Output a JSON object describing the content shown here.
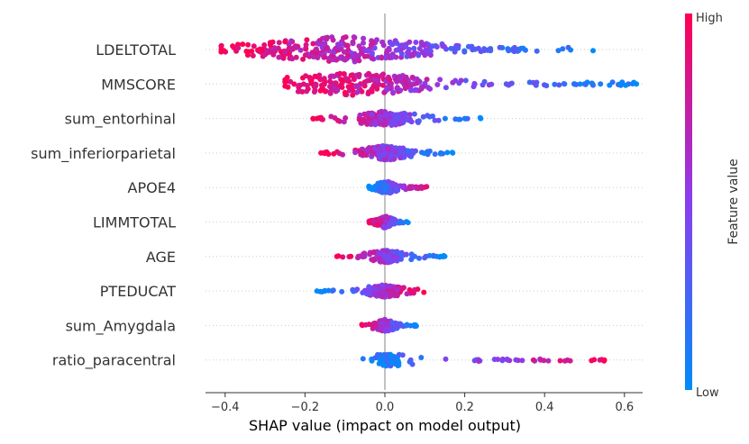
{
  "chart_data": {
    "type": "scatter",
    "subtype": "shap-beeswarm",
    "xlabel": "SHAP value (impact on model output)",
    "xlim": [
      -0.45,
      0.66
    ],
    "xticks": [
      -0.4,
      -0.2,
      0.0,
      0.2,
      0.4,
      0.6
    ],
    "xtick_labels": [
      "−0.4",
      "−0.2",
      "0.0",
      "0.2",
      "0.4",
      "0.6"
    ],
    "colorbar": {
      "title": "Feature value",
      "high_label": "High",
      "low_label": "Low",
      "high_color": "#ff0052",
      "mid_color": "#8a3df0",
      "low_color": "#008bfb"
    },
    "features": [
      {
        "name": "LDELTOTAL",
        "min": -0.41,
        "max": 0.53,
        "core": [
          -0.31,
          0.1
        ],
        "density": 10,
        "direction": -1
      },
      {
        "name": "MMSCORE",
        "min": -0.25,
        "max": 0.63,
        "core": [
          -0.22,
          0.08
        ],
        "density": 8,
        "direction": -1,
        "outliers": [
          0.45,
          0.5,
          0.52,
          0.54,
          0.59,
          0.63
        ]
      },
      {
        "name": "sum_entorhinal",
        "min": -0.18,
        "max": 0.24,
        "core": [
          -0.05,
          0.05
        ],
        "density": 4,
        "direction": -1,
        "outliers": [
          -0.18,
          -0.17,
          0.2,
          0.24
        ]
      },
      {
        "name": "sum_inferiorparietal",
        "min": -0.16,
        "max": 0.17,
        "core": [
          -0.05,
          0.05
        ],
        "density": 4,
        "direction": -1,
        "outliers": [
          -0.16,
          0.14,
          0.17
        ]
      },
      {
        "name": "APOE4",
        "min": -0.04,
        "max": 0.11,
        "core": [
          -0.02,
          0.03
        ],
        "density": 3,
        "direction": 1
      },
      {
        "name": "LIMMTOTAL",
        "min": -0.04,
        "max": 0.06,
        "core": [
          -0.02,
          0.02
        ],
        "density": 3,
        "direction": -1
      },
      {
        "name": "AGE",
        "min": -0.12,
        "max": 0.15,
        "core": [
          -0.03,
          0.04
        ],
        "density": 3,
        "direction": -1,
        "outliers": [
          -0.12,
          0.13,
          0.15
        ]
      },
      {
        "name": "PTEDUCAT",
        "min": -0.17,
        "max": 0.11,
        "core": [
          -0.03,
          0.03
        ],
        "density": 3,
        "direction": 1,
        "outliers": [
          -0.17,
          -0.15
        ]
      },
      {
        "name": "sum_Amygdala",
        "min": -0.06,
        "max": 0.08,
        "core": [
          -0.02,
          0.02
        ],
        "density": 3,
        "direction": -1
      },
      {
        "name": "ratio_paracentral",
        "min": -0.06,
        "max": 0.55,
        "core": [
          -0.01,
          0.03
        ],
        "density": 3,
        "direction": 1,
        "outliers": [
          0.39,
          0.55
        ]
      }
    ]
  }
}
